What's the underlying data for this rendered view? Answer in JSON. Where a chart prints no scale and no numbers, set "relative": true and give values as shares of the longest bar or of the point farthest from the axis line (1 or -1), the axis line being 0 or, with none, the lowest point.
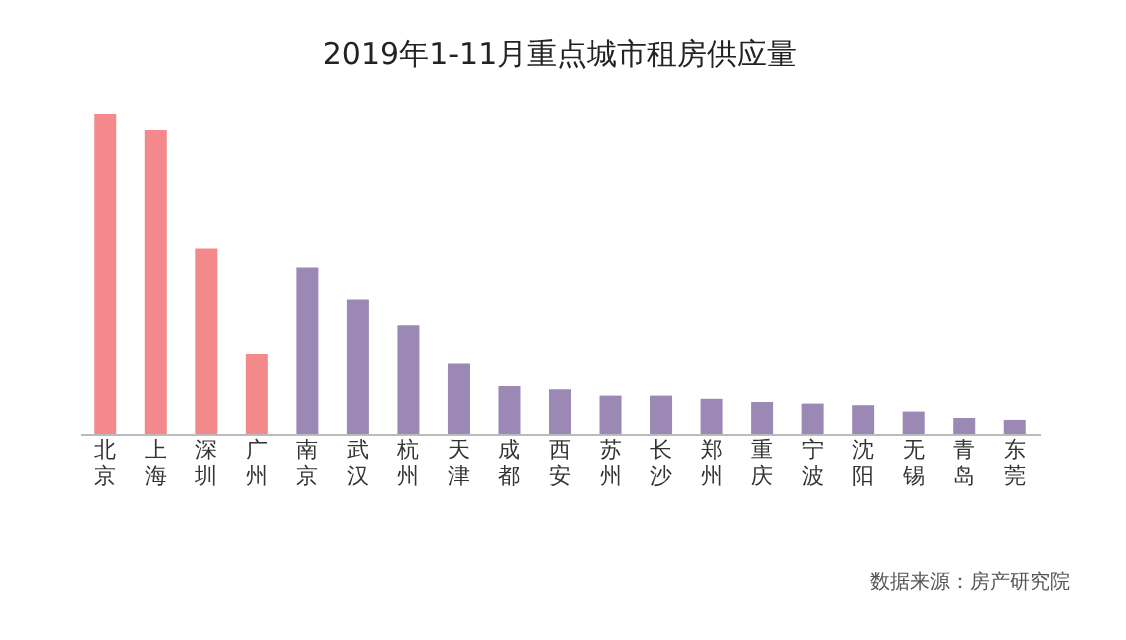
{
  "chart_data": {
    "type": "bar",
    "title": "2019年1-11月重点城市租房供应量",
    "relative": true,
    "categories": [
      "北京",
      "上海",
      "深圳",
      "广州",
      "南京",
      "武汉",
      "杭州",
      "天津",
      "成都",
      "西安",
      "苏州",
      "长沙",
      "郑州",
      "重庆",
      "宁波",
      "沈阳",
      "无锡",
      "青岛",
      "东莞"
    ],
    "values": [
      1,
      0.95,
      0.58,
      0.25,
      0.52,
      0.42,
      0.34,
      0.22,
      0.15,
      0.14,
      0.12,
      0.12,
      0.11,
      0.1,
      0.095,
      0.09,
      0.07,
      0.05,
      0.044
    ],
    "colors": [
      "#f4898b",
      "#f4898b",
      "#f4898b",
      "#f4898b",
      "#9b88b5",
      "#9b88b5",
      "#9b88b5",
      "#9b88b5",
      "#9b88b5",
      "#9b88b5",
      "#9b88b5",
      "#9b88b5",
      "#9b88b5",
      "#9b88b5",
      "#9b88b5",
      "#9b88b5",
      "#9b88b5",
      "#9b88b5",
      "#9b88b5"
    ],
    "annotations": [
      "数据来源：房产研究院"
    ]
  }
}
